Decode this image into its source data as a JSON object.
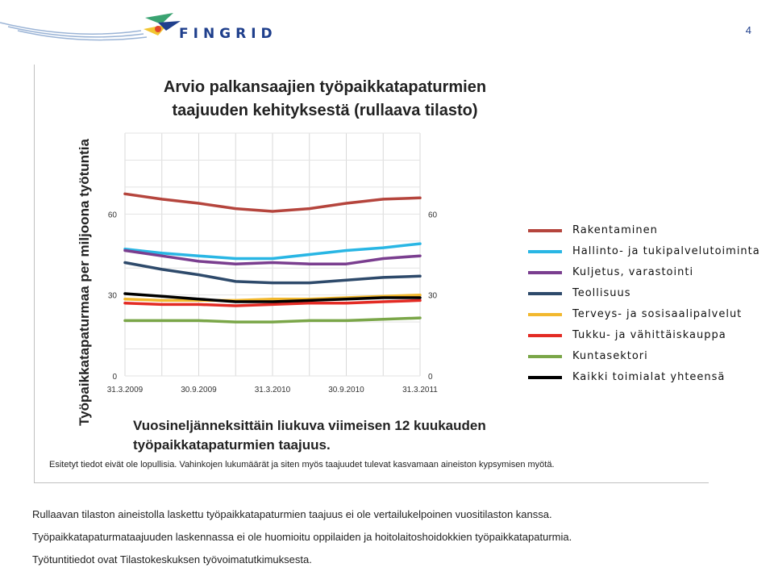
{
  "header": {
    "logo_text": "FINGRID",
    "page_number": "4",
    "colors": {
      "brand_blue": "#1f3f8c",
      "brand_green": "#3aa371",
      "brand_yellow": "#f2c531",
      "brand_red": "#e0472b"
    }
  },
  "panel": {
    "title": "Arvio palkansaajien työpaikkatapaturmien taajuuden kehityksestä (rullaava tilasto)",
    "subtitle": "Vuosineljänneksittäin liukuva viimeisen 12 kuukauden työpaikkatapaturmien taajuus.",
    "note": "Esitetyt tiedot eivät ole lopullisia. Vahinkojen lukumäärät ja siten myös taajuudet tulevat kasvamaan aineiston kypsymisen myötä."
  },
  "chart_data": {
    "type": "line",
    "ylabel": "Työpaikkatapaturmaa per miljoona työtuntia",
    "ylim": [
      0,
      90
    ],
    "yticks": [
      0,
      30,
      60
    ],
    "ytick_labels": [
      "0",
      "30",
      "60"
    ],
    "x": [
      "31.3.2009",
      "30.6.2009",
      "30.9.2009",
      "31.12.2009",
      "31.3.2010",
      "30.6.2010",
      "30.9.2010",
      "31.12.2010",
      "31.3.2011"
    ],
    "xtick_labels": [
      "31.3.2009",
      "30.9.2009",
      "31.3.2010",
      "30.9.2010",
      "31.3.2011"
    ],
    "grid": true,
    "series": [
      {
        "name": "Rakentaminen",
        "color": "#b5453d",
        "values": [
          67.5,
          65.5,
          64,
          62,
          61,
          62,
          64,
          65.5,
          66
        ]
      },
      {
        "name": "Hallinto- ja tukipalvelutoiminta",
        "color": "#29b6e4",
        "values": [
          47,
          45.5,
          44.5,
          43.5,
          43.5,
          45,
          46.5,
          47.5,
          49
        ]
      },
      {
        "name": "Kuljetus, varastointi",
        "color": "#7a3e8f",
        "values": [
          46.5,
          44.5,
          42.5,
          41.5,
          42,
          41.5,
          41.5,
          43.5,
          44.5
        ]
      },
      {
        "name": "Teollisuus",
        "color": "#2e4a6b",
        "values": [
          42,
          39.5,
          37.5,
          35,
          34.5,
          34.5,
          35.5,
          36.5,
          37
        ]
      },
      {
        "name": "Terveys- ja sosisaalipalvelut",
        "color": "#f2b82e",
        "values": [
          28.5,
          28,
          28,
          28,
          28.5,
          28.5,
          29,
          29.5,
          30
        ]
      },
      {
        "name": "Tukku- ja vähittäiskauppa",
        "color": "#e32b24",
        "values": [
          27,
          26.5,
          26.5,
          26,
          26.5,
          27,
          27,
          27.5,
          28
        ]
      },
      {
        "name": "Kuntasektori",
        "color": "#7aa648",
        "values": [
          20.5,
          20.5,
          20.5,
          20,
          20,
          20.5,
          20.5,
          21,
          21.5
        ]
      },
      {
        "name": "Kaikki toimialat yhteensä",
        "color": "#000000",
        "values": [
          30.5,
          29.5,
          28.5,
          27.5,
          27.5,
          28,
          28.5,
          29,
          29
        ]
      }
    ]
  },
  "legend": [
    {
      "label": "Rakentaminen",
      "color": "#b5453d"
    },
    {
      "label": "Hallinto- ja tukipalvelutoiminta",
      "color": "#29b6e4"
    },
    {
      "label": "Kuljetus, varastointi",
      "color": "#7a3e8f"
    },
    {
      "label": "Teollisuus",
      "color": "#2e4a6b"
    },
    {
      "label": "Terveys- ja sosisaalipalvelut",
      "color": "#f2b82e"
    },
    {
      "label": "Tukku- ja vähittäiskauppa",
      "color": "#e32b24"
    },
    {
      "label": "Kuntasektori",
      "color": "#7aa648"
    },
    {
      "label": "Kaikki toimialat yhteensä",
      "color": "#000000"
    }
  ],
  "footer": [
    "Rullaavan tilaston aineistolla laskettu työpaikkatapaturmien taajuus ei ole vertailukelpoinen vuositilaston kanssa.",
    "Työpaikkatapaturmataajuuden laskennassa ei ole huomioitu oppilaiden ja hoitolaitoshoidokkien työpaikkatapaturmia.",
    "Työtuntitiedot ovat Tilastokeskuksen työvoimatutkimuksesta."
  ]
}
